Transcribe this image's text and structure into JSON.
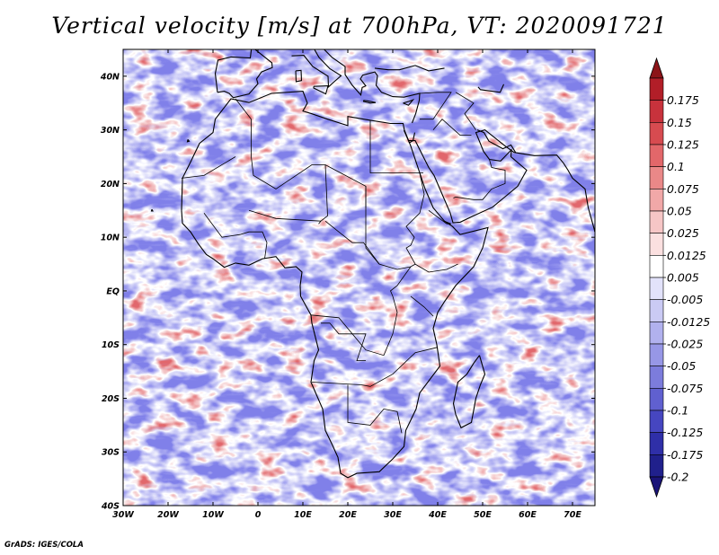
{
  "title": "Vertical velocity [m/s] at 700hPa, VT: 2020091721",
  "credit": "GrADS: IGES/COLA",
  "map": {
    "lon_range": [
      -30,
      75
    ],
    "lat_range": [
      -40,
      45
    ],
    "lat_labels": [
      "40N",
      "30N",
      "20N",
      "10N",
      "EQ",
      "10S",
      "20S",
      "30S",
      "40S"
    ],
    "lat_values": [
      40,
      30,
      20,
      10,
      0,
      -10,
      -20,
      -30,
      -40
    ],
    "lon_labels": [
      "30W",
      "20W",
      "10W",
      "0",
      "10E",
      "20E",
      "30E",
      "40E",
      "50E",
      "60E",
      "70E"
    ],
    "lon_values": [
      -30,
      -20,
      -10,
      0,
      10,
      20,
      30,
      40,
      50,
      60,
      70
    ]
  },
  "colorbar": {
    "labels": [
      "0.175",
      "0.15",
      "0.125",
      "0.1",
      "0.075",
      "0.05",
      "0.025",
      "0.0125",
      "0.005",
      "-0.005",
      "-0.0125",
      "-0.025",
      "-0.05",
      "-0.075",
      "-0.1",
      "-0.125",
      "-0.175",
      "-0.2"
    ],
    "colors": [
      "#b21e28",
      "#c8323c",
      "#d74b50",
      "#e2676a",
      "#ea8888",
      "#f1a8a8",
      "#f6c6c6",
      "#fbe0e0",
      "#ffffff",
      "#e2e2fa",
      "#cacaf4",
      "#b1b1ee",
      "#9797e6",
      "#7c7cdc",
      "#6060d0",
      "#4646c0",
      "#2f2fa8",
      "#20208c"
    ],
    "top_arrow_color": "#8c1418",
    "bottom_arrow_color": "#1a1478"
  }
}
